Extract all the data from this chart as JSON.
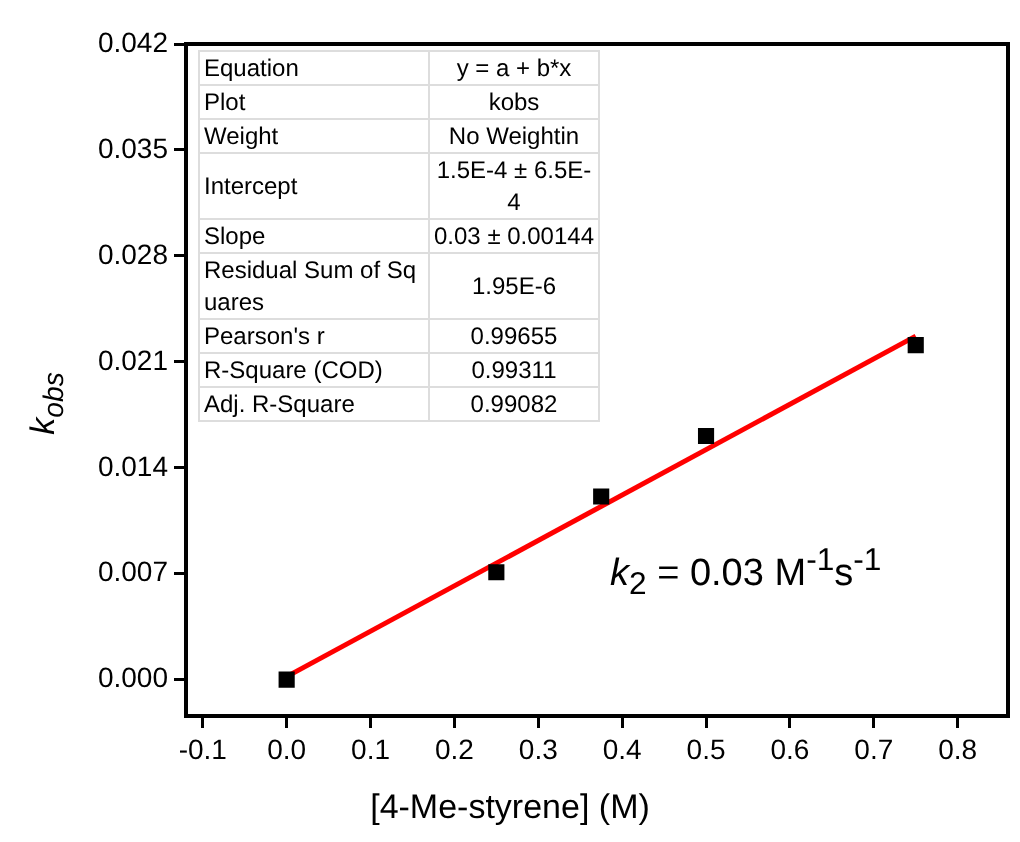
{
  "chart_data": {
    "type": "scatter",
    "xlabel": "[4-Me-styrene] (M)",
    "ylabel": "k$_{obs}$",
    "xlim": [
      -0.12,
      0.86
    ],
    "ylim": [
      -0.0024,
      0.042
    ],
    "xticks": [
      -0.1,
      {
        "value": 0,
        "label": "0.0"
      },
      0.1,
      0.2,
      0.3,
      0.4,
      0.5,
      0.6,
      0.7,
      0.8
    ],
    "yticks": [
      {
        "value": 0,
        "label": "0.000"
      },
      0.007,
      0.014,
      0.021,
      {
        "value": 0.028,
        "label": "0.028"
      },
      0.035,
      0.042
    ],
    "grid": false,
    "legend": false,
    "series": [
      {
        "color": "#000000",
        "marker": "square",
        "x": [
          0,
          0.25,
          0.375,
          0.5,
          0.75
        ],
        "values": [
          0,
          0.0071,
          0.0121,
          0.0161,
          0.0221
        ]
      },
      {
        "type": "line",
        "color": "#ff0000",
        "marker": "none",
        "line_style": "solid",
        "x": [
          0,
          0.75
        ],
        "values": [
          0.0002,
          0.0227
        ]
      }
    ],
    "annotations": [
      "Equation",
      "y = a + b*x",
      "Plot",
      "kobs",
      "Weight",
      "No Weightin",
      "Intercept",
      "1.5E-4 ± 6.5E-4",
      "Slope",
      "0.03 ± 0.00144",
      "Residual Sum of Squares",
      "1.95E-6",
      "Pearson's r",
      "0.99655",
      "R-Square (COD)",
      "0.99311",
      "Adj. R-Square",
      "0.99082",
      "k$_{2}$ = 0.03 M$^{-1}$s$^{-1}$"
    ]
  }
}
